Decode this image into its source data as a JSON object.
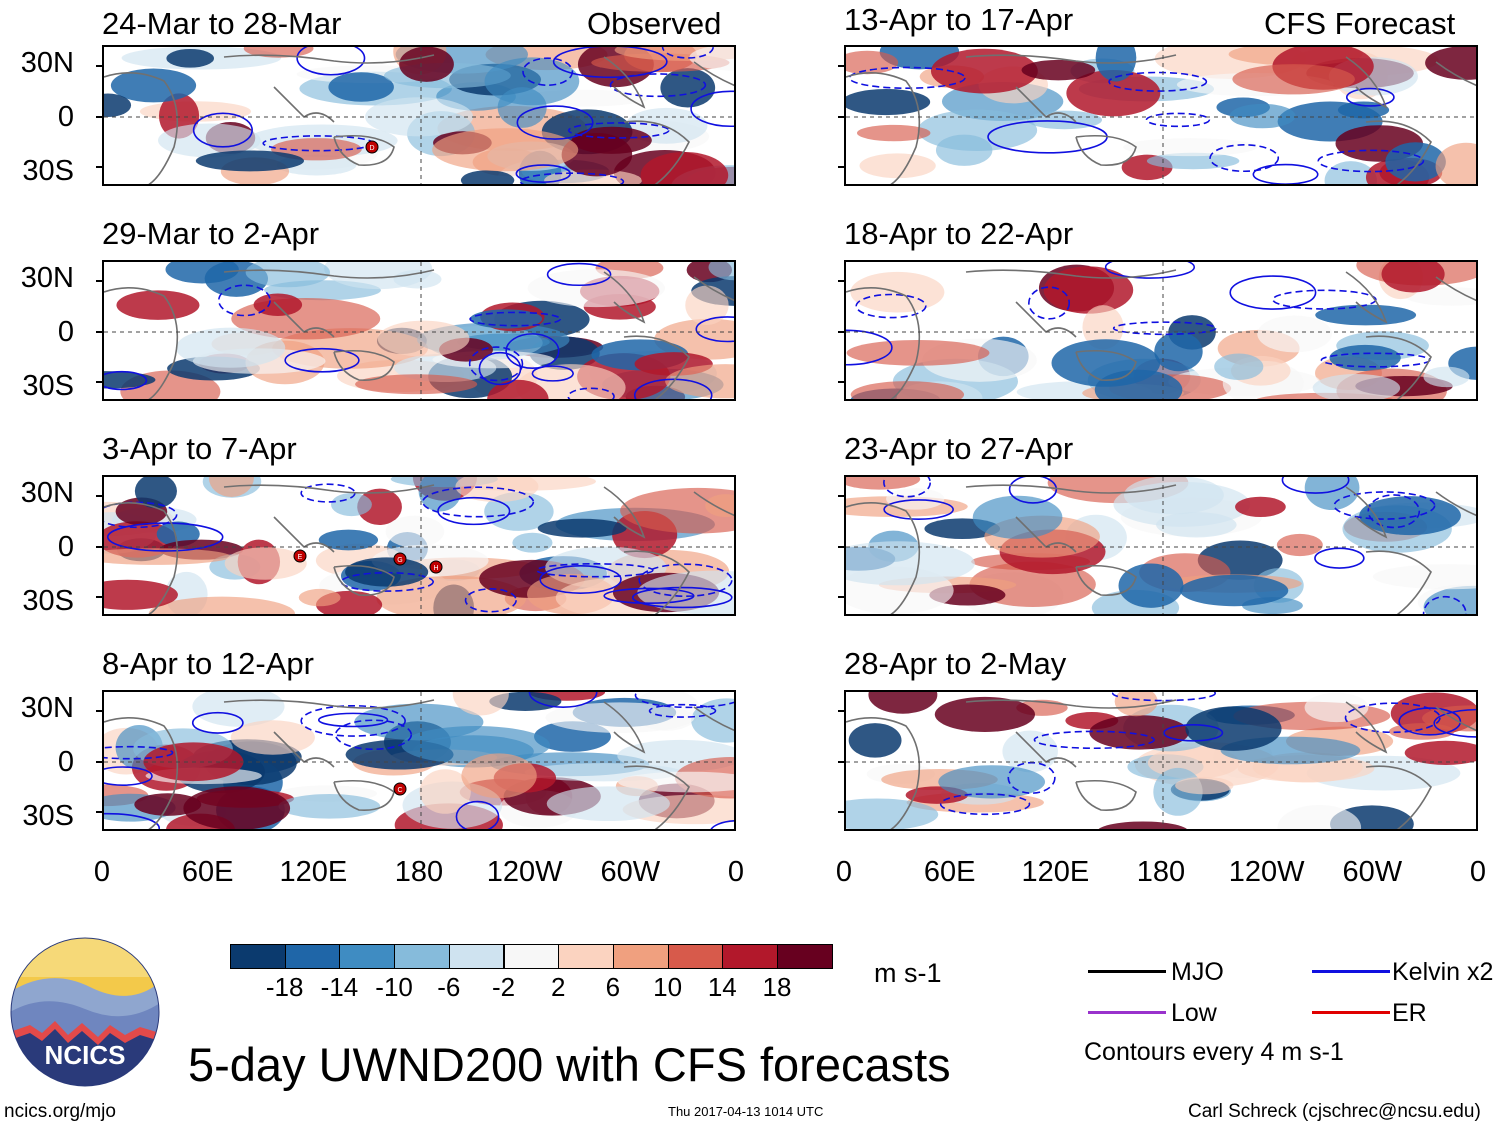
{
  "header": {
    "left_label": "Observed",
    "right_label": "CFS Forecast"
  },
  "observed_panels": [
    {
      "date_range": "24-Mar to 28-Mar",
      "storms": [
        "D"
      ]
    },
    {
      "date_range": "29-Mar to 2-Apr",
      "storms": []
    },
    {
      "date_range": "3-Apr to 7-Apr",
      "storms": [
        "E",
        "G",
        "H"
      ]
    },
    {
      "date_range": "8-Apr to 12-Apr",
      "storms": [
        "C"
      ]
    }
  ],
  "forecast_panels": [
    {
      "date_range": "13-Apr to 17-Apr"
    },
    {
      "date_range": "18-Apr to 22-Apr"
    },
    {
      "date_range": "23-Apr to 27-Apr"
    },
    {
      "date_range": "28-Apr to 2-May"
    }
  ],
  "axes": {
    "y_ticks": [
      "30N",
      "0",
      "30S"
    ],
    "x_ticks": [
      "0",
      "60E",
      "120E",
      "180",
      "120W",
      "60W",
      "0"
    ]
  },
  "colorbar": {
    "unit": "m s-1",
    "labels": [
      "-18",
      "-14",
      "-10",
      "-6",
      "-2",
      "2",
      "6",
      "10",
      "14",
      "18"
    ],
    "colors": [
      "#0b3a6e",
      "#1f66a8",
      "#3f8cc2",
      "#86bbdb",
      "#cfe3f0",
      "#f7f7f7",
      "#fbd3c0",
      "#f0a07f",
      "#d75a4b",
      "#b2182b",
      "#67001f"
    ]
  },
  "legend": {
    "items": [
      {
        "label": "MJO",
        "color": "#000000"
      },
      {
        "label": "Kelvin x2",
        "color": "#1010e0"
      },
      {
        "label": "Low",
        "color": "#9932cc"
      },
      {
        "label": "ER",
        "color": "#e00000"
      }
    ],
    "note": "Contours every 4 m s-1"
  },
  "title": "5-day UWND200 with CFS forecasts",
  "logo_text": "NCICS",
  "footer": {
    "url": "ncics.org/mjo",
    "timestamp": "Thu 2017-04-13 1014 UTC",
    "credit": "Carl Schreck (cjschrec@ncsu.edu)"
  }
}
